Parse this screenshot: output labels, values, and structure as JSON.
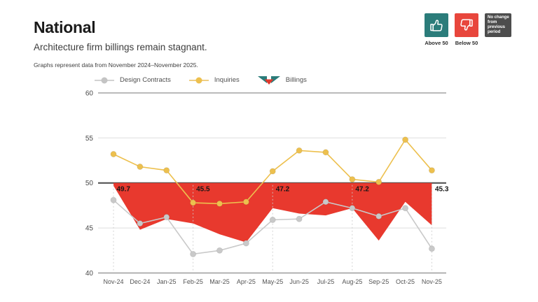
{
  "header": {
    "title": "National",
    "subtitle": "Architecture firm billings remain stagnant.",
    "note": "Graphs represent data from November 2024–November 2025."
  },
  "badges": {
    "above": {
      "label": "Above 50",
      "icon": "thumbs-up-icon",
      "color": "#2b7c7a"
    },
    "below": {
      "label": "Below 50",
      "icon": "thumbs-down-icon",
      "color": "#e8463c"
    },
    "no_change": {
      "lines": [
        "No change",
        "from",
        "previous",
        "period"
      ],
      "color": "#4d4d4d"
    }
  },
  "legend": [
    {
      "label": "Design Contracts",
      "color": "#c9c9c9"
    },
    {
      "label": "Inquiries",
      "color": "#edc04e"
    },
    {
      "label": "Billings",
      "color_teal": "#2b7c7a",
      "color_red": "#e0392e"
    }
  ],
  "chart_data": {
    "type": "line",
    "title": "National Architecture Billings Index",
    "x": [
      "Nov-24",
      "Dec-24",
      "Jan-25",
      "Feb-25",
      "Mar-25",
      "Apr-25",
      "May-25",
      "Jun-25",
      "Jul-25",
      "Aug-25",
      "Sep-25",
      "Oct-25",
      "Nov-25"
    ],
    "ylim": [
      40,
      60
    ],
    "yticks": [
      40,
      45,
      50,
      55,
      60
    ],
    "baseline": 50,
    "grid": true,
    "legend_position": "top",
    "series": [
      {
        "name": "Design Contracts",
        "type": "line",
        "color": "#c9c9c9",
        "values": [
          48.1,
          45.5,
          46.2,
          42.1,
          42.5,
          43.3,
          45.9,
          46.0,
          47.9,
          47.2,
          46.3,
          47.2,
          42.7
        ]
      },
      {
        "name": "Inquiries",
        "type": "line",
        "color": "#edc04e",
        "values": [
          53.2,
          51.8,
          51.4,
          47.8,
          47.7,
          47.9,
          51.3,
          53.6,
          53.4,
          50.4,
          50.1,
          54.8,
          51.4
        ]
      },
      {
        "name": "Billings",
        "type": "area",
        "color": "#e8392e",
        "values": [
          49.7,
          44.8,
          46.0,
          45.5,
          44.3,
          43.4,
          47.2,
          46.6,
          46.4,
          47.2,
          43.6,
          47.9,
          45.3
        ]
      }
    ],
    "annotations": [
      {
        "month": "Nov-24",
        "index": 0,
        "label": "49.7"
      },
      {
        "month": "Feb-25",
        "index": 3,
        "label": "45.5"
      },
      {
        "month": "May-25",
        "index": 6,
        "label": "47.2"
      },
      {
        "month": "Aug-25",
        "index": 9,
        "label": "47.2"
      },
      {
        "month": "Nov-25",
        "index": 12,
        "label": "45.3"
      }
    ]
  }
}
